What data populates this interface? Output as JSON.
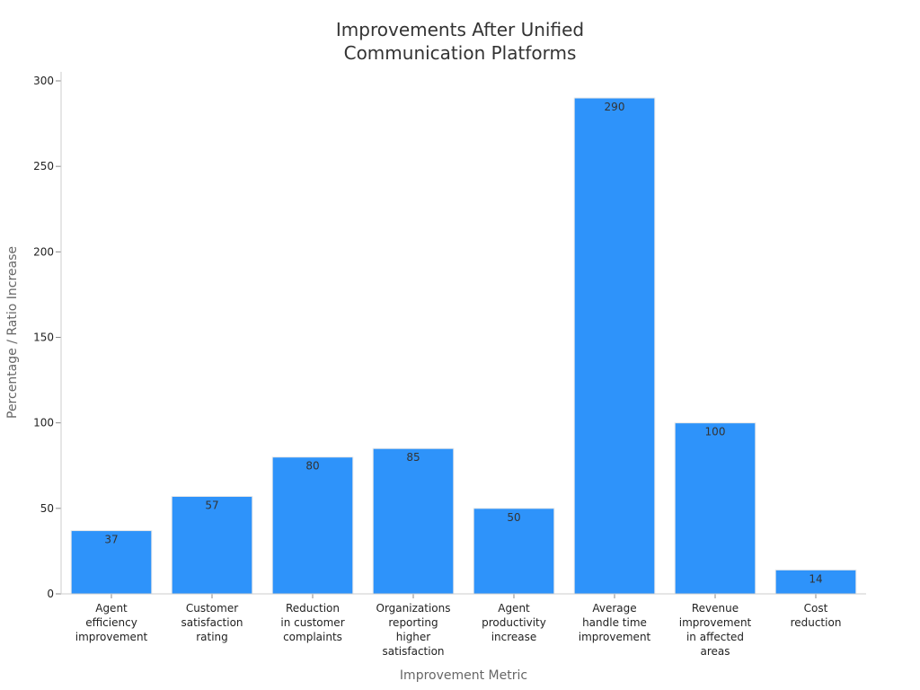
{
  "chart_data": {
    "type": "bar",
    "title": [
      "Improvements After Unified",
      "Communication Platforms"
    ],
    "xlabel": "Improvement Metric",
    "ylabel": "Percentage / Ratio Increase",
    "categories": [
      [
        "Agent",
        "efficiency",
        "improvement"
      ],
      [
        "Customer",
        "satisfaction",
        "rating"
      ],
      [
        "Reduction",
        "in customer",
        "complaints"
      ],
      [
        "Organizations",
        "reporting",
        "higher",
        "satisfaction"
      ],
      [
        "Agent",
        "productivity",
        "increase"
      ],
      [
        "Average",
        "handle time",
        "improvement"
      ],
      [
        "Revenue",
        "improvement",
        "in affected",
        "areas"
      ],
      [
        "Cost",
        "reduction"
      ]
    ],
    "values": [
      37,
      57,
      80,
      85,
      50,
      290,
      100,
      14
    ],
    "ylim": [
      0,
      300
    ],
    "yticks": [
      0,
      50,
      100,
      150,
      200,
      250,
      300
    ],
    "grid": false,
    "bar_color": "#2e93fa",
    "bar_edge_color": "#e8e8e8",
    "data_labels": true
  }
}
